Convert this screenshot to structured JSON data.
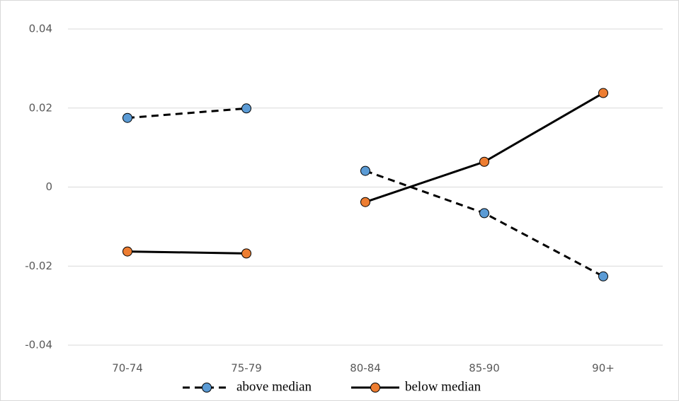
{
  "chart_data": {
    "type": "line",
    "categories": [
      "70-74",
      "75-79",
      "80-84",
      "85-90",
      "90+"
    ],
    "line_break_after": "75-79",
    "series": [
      {
        "name": "above median",
        "color": "#5b9bd5",
        "line_color": "#000000",
        "dashed": true,
        "values": [
          0.0175,
          0.0199,
          0.0041,
          -0.0066,
          -0.0226
        ]
      },
      {
        "name": "below median",
        "color": "#ed7d31",
        "line_color": "#000000",
        "dashed": false,
        "values": [
          -0.0163,
          -0.0168,
          -0.0038,
          0.0064,
          0.0238
        ]
      }
    ],
    "ylim": [
      -0.04,
      0.04
    ],
    "yticks": [
      -0.04,
      -0.02,
      0,
      0.02,
      0.04
    ],
    "grid": true
  }
}
